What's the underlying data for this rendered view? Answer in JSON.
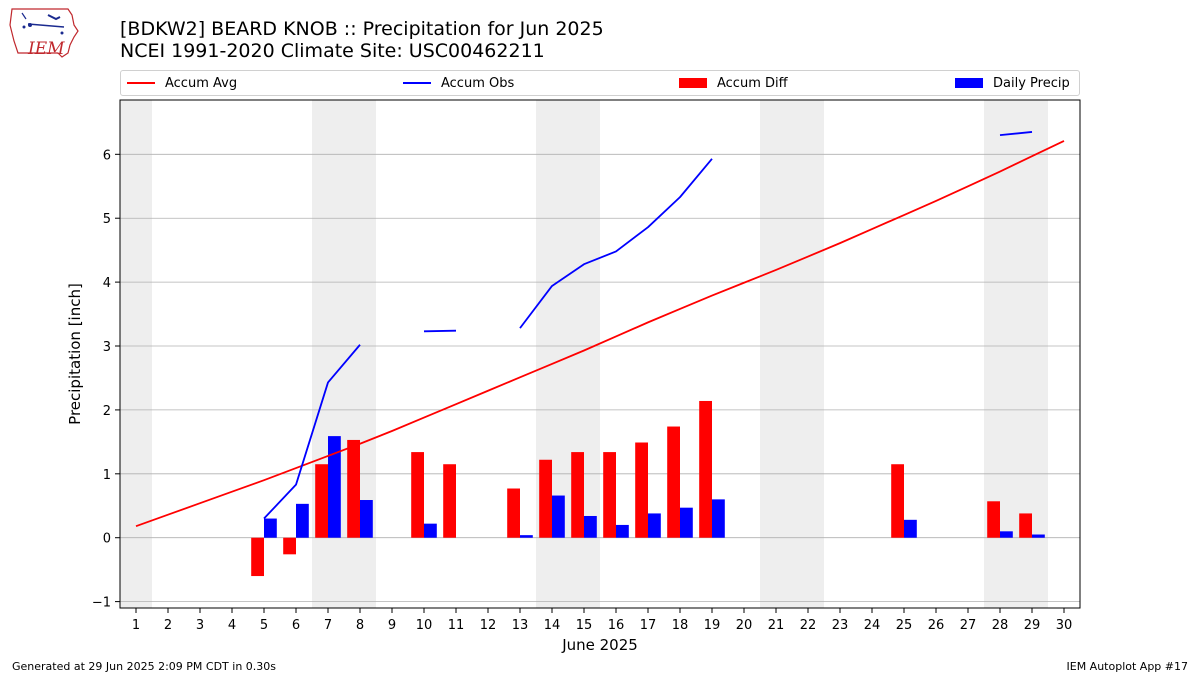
{
  "header": {
    "title_line1": "[BDKW2] BEARD KNOB :: Precipitation for Jun 2025",
    "title_line2": "NCEI 1991-2020 Climate Site: USC00462211"
  },
  "logo": {
    "text": "IEM"
  },
  "footer": {
    "left": "Generated at 29 Jun 2025 2:09 PM CDT in 0.30s",
    "right": "IEM Autoplot App #17"
  },
  "colors": {
    "avg": "#ff0000",
    "obs": "#0000ff",
    "diff": "#ff0000",
    "daily": "#0000ff",
    "weekend_shade": "#eeeeee",
    "grid": "#b0b0b0"
  },
  "chart_data": {
    "type": "bar",
    "xlabel": "June 2025",
    "ylabel": "Precipitation [inch]",
    "xlim": [
      0.5,
      30.5
    ],
    "ylim": [
      -1.1,
      6.85
    ],
    "x": [
      1,
      2,
      3,
      4,
      5,
      6,
      7,
      8,
      9,
      10,
      11,
      12,
      13,
      14,
      15,
      16,
      17,
      18,
      19,
      20,
      21,
      22,
      23,
      24,
      25,
      26,
      27,
      28,
      29,
      30
    ],
    "x_tick_labels": [
      "1",
      "2",
      "3",
      "4",
      "5",
      "6",
      "7",
      "8",
      "9",
      "10",
      "11",
      "12",
      "13",
      "14",
      "15",
      "16",
      "17",
      "18",
      "19",
      "20",
      "21",
      "22",
      "23",
      "24",
      "25",
      "26",
      "27",
      "28",
      "29",
      "30"
    ],
    "y_ticks": [
      -1,
      0,
      1,
      2,
      3,
      4,
      5,
      6
    ],
    "y_tick_labels": [
      "−1",
      "0",
      "1",
      "2",
      "3",
      "4",
      "5",
      "6"
    ],
    "grid": "horizontal",
    "shaded_days": [
      1,
      7,
      8,
      14,
      15,
      21,
      22,
      28,
      29
    ],
    "legend": {
      "placement": "top",
      "entries": [
        "Accum Avg",
        "Accum Obs",
        "Accum Diff",
        "Daily Precip"
      ]
    },
    "series": [
      {
        "name": "Accum Avg",
        "type": "line",
        "values": [
          0.18,
          0.36,
          0.54,
          0.72,
          0.9,
          1.09,
          1.28,
          1.47,
          1.67,
          1.88,
          2.09,
          2.3,
          2.51,
          2.72,
          2.93,
          3.15,
          3.37,
          3.58,
          3.79,
          3.99,
          4.19,
          4.4,
          4.61,
          4.83,
          5.05,
          5.27,
          5.5,
          5.73,
          5.97,
          6.21
        ]
      },
      {
        "name": "Accum Obs",
        "type": "line",
        "values": [
          null,
          null,
          null,
          null,
          0.3,
          0.83,
          2.43,
          3.02,
          null,
          3.23,
          3.24,
          null,
          3.28,
          3.94,
          4.28,
          4.48,
          4.86,
          5.33,
          5.93,
          null,
          null,
          null,
          null,
          null,
          null,
          null,
          null,
          6.3,
          6.35,
          null
        ]
      },
      {
        "name": "Accum Diff",
        "type": "bar",
        "values": [
          null,
          null,
          null,
          null,
          -0.6,
          -0.26,
          1.15,
          1.53,
          null,
          1.34,
          1.15,
          null,
          0.77,
          1.22,
          1.34,
          1.34,
          1.49,
          1.74,
          2.14,
          null,
          null,
          null,
          null,
          null,
          1.15,
          null,
          null,
          0.57,
          0.38,
          null
        ]
      },
      {
        "name": "Daily Precip",
        "type": "bar",
        "values": [
          null,
          null,
          null,
          null,
          0.3,
          0.53,
          1.59,
          0.59,
          null,
          0.22,
          null,
          null,
          0.04,
          0.66,
          0.34,
          0.2,
          0.38,
          0.47,
          0.6,
          null,
          null,
          null,
          null,
          null,
          0.28,
          null,
          null,
          0.1,
          0.05,
          null
        ]
      }
    ]
  }
}
